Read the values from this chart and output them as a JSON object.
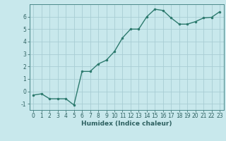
{
  "x": [
    0,
    1,
    2,
    3,
    4,
    5,
    6,
    7,
    8,
    9,
    10,
    11,
    12,
    13,
    14,
    15,
    16,
    17,
    18,
    19,
    20,
    21,
    22,
    23
  ],
  "y": [
    -0.3,
    -0.2,
    -0.6,
    -0.6,
    -0.6,
    -1.1,
    1.6,
    1.6,
    2.2,
    2.5,
    3.2,
    4.3,
    5.0,
    5.0,
    6.0,
    6.6,
    6.5,
    5.9,
    5.4,
    5.4,
    5.6,
    5.9,
    5.95,
    6.4
  ],
  "line_color": "#2d7a6e",
  "marker": ".",
  "marker_size": 3,
  "background_color": "#c8e8ec",
  "grid_color": "#a8cdd4",
  "xlabel": "Humidex (Indice chaleur)",
  "xlim": [
    -0.5,
    23.5
  ],
  "ylim": [
    -1.5,
    7.0
  ],
  "yticks": [
    -1,
    0,
    1,
    2,
    3,
    4,
    5,
    6
  ],
  "xticks": [
    0,
    1,
    2,
    3,
    4,
    5,
    6,
    7,
    8,
    9,
    10,
    11,
    12,
    13,
    14,
    15,
    16,
    17,
    18,
    19,
    20,
    21,
    22,
    23
  ],
  "xlabel_fontsize": 6.5,
  "tick_fontsize": 5.5,
  "line_width": 1.0,
  "tick_color": "#2d6060",
  "spine_color": "#4a8888"
}
